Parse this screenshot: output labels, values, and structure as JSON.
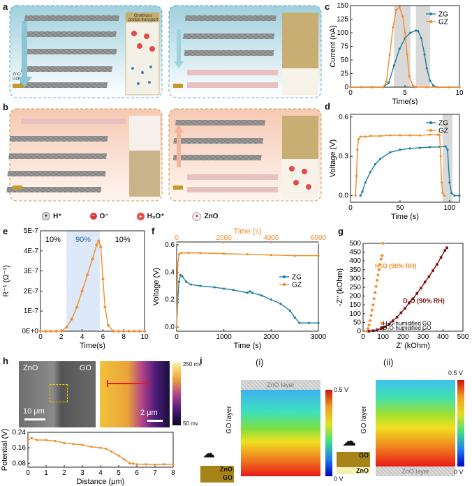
{
  "panel_labels": {
    "a": "a",
    "b": "b",
    "c": "c",
    "d": "d",
    "e": "e",
    "f": "f",
    "g": "g",
    "h": "h",
    "i": "i"
  },
  "schematic": {
    "grotthuss_label": "Grotthuss proton transport",
    "zno_tag": "ZnO",
    "go_tag": "GO",
    "legend": [
      {
        "symbol": "+",
        "label": "H⁺"
      },
      {
        "symbol": "−",
        "label": "O⁻"
      },
      {
        "symbol": "+",
        "label": "H₃O⁺"
      },
      {
        "symbol": "•",
        "label": "ZnO"
      }
    ]
  },
  "colors": {
    "zg": "#1b7f9e",
    "gz": "#f28c28",
    "d2o": "#7a1010",
    "h2o": "#f28c28",
    "highlight": "#dde8f8",
    "gray_band": "#d9d9d9"
  },
  "chart_data": [
    {
      "id": "c",
      "type": "line",
      "xlabel": "Time(s)",
      "ylabel": "Current (nA)",
      "xlim": [
        0,
        10
      ],
      "ylim": [
        0,
        150
      ],
      "xticks": [
        0,
        5,
        10
      ],
      "yticks": [
        0,
        25,
        50,
        75,
        100,
        125,
        150
      ],
      "bands": [
        [
          4,
          5.5
        ],
        [
          6,
          7.3
        ]
      ],
      "series": [
        {
          "name": "ZG",
          "x": [
            0,
            1,
            2,
            3,
            3.5,
            4,
            4.5,
            5,
            5.5,
            6,
            6.2,
            6.5,
            6.8,
            7,
            7.3,
            7.6,
            8,
            9,
            10
          ],
          "values": [
            0,
            0,
            0,
            0,
            8,
            40,
            70,
            90,
            100,
            104,
            103,
            90,
            60,
            35,
            12,
            3,
            0,
            0,
            0
          ]
        },
        {
          "name": "GZ",
          "x": [
            0,
            1,
            2,
            3,
            3.3,
            3.6,
            3.9,
            4.2,
            4.5,
            4.8,
            5,
            5.2,
            5.4,
            5.7,
            6,
            7,
            8,
            9,
            10
          ],
          "values": [
            0,
            0,
            0,
            0,
            10,
            60,
            110,
            142,
            147,
            130,
            100,
            60,
            20,
            4,
            0,
            0,
            0,
            0,
            0
          ]
        }
      ]
    },
    {
      "id": "d",
      "type": "line",
      "xlabel": "Time (s)",
      "ylabel": "Voltage (V)",
      "xlim": [
        0,
        110
      ],
      "ylim": [
        -0.05,
        0.62
      ],
      "xticks": [
        0,
        50,
        100
      ],
      "yticks": [
        0.0,
        0.3,
        0.6
      ],
      "bands": [
        [
          93,
          103
        ]
      ],
      "series": [
        {
          "name": "ZG",
          "x": [
            10,
            12,
            15,
            20,
            25,
            30,
            40,
            50,
            60,
            70,
            80,
            90,
            96,
            98,
            100,
            102,
            105,
            110
          ],
          "values": [
            0,
            0.03,
            0.1,
            0.18,
            0.24,
            0.28,
            0.33,
            0.35,
            0.36,
            0.365,
            0.37,
            0.372,
            0.375,
            0.35,
            0.1,
            0.02,
            0,
            0
          ]
        },
        {
          "name": "GZ",
          "x": [
            5,
            6,
            7,
            8,
            10,
            15,
            20,
            30,
            40,
            50,
            60,
            70,
            80,
            88,
            90,
            91,
            92,
            93,
            95
          ],
          "values": [
            0,
            0.15,
            0.35,
            0.43,
            0.45,
            0.45,
            0.455,
            0.455,
            0.46,
            0.46,
            0.46,
            0.46,
            0.465,
            0.465,
            0.465,
            0.3,
            0.1,
            0.02,
            0
          ]
        }
      ]
    },
    {
      "id": "e",
      "type": "line",
      "xlabel": "Time(s)",
      "ylabel": "R⁻¹ (Ω⁻¹)",
      "xlim": [
        0,
        10
      ],
      "ylim": [
        0,
        5e-07
      ],
      "xticks": [
        0,
        2,
        4,
        6,
        8,
        10
      ],
      "ytick_labels": [
        "0E+0",
        "1E-7",
        "2E-7",
        "3E-7",
        "4E-7",
        "5E-7"
      ],
      "yticks": [
        0,
        1e-07,
        2e-07,
        3e-07,
        4e-07,
        5e-07
      ],
      "region_labels": [
        "10%",
        "90%",
        "10%"
      ],
      "highlight": [
        2.5,
        5.7
      ],
      "series": [
        {
          "name": "R",
          "x": [
            0,
            0.5,
            1,
            1.5,
            2,
            2.5,
            3,
            3.5,
            4,
            4.5,
            5,
            5.4,
            5.6,
            5.8,
            6,
            6.2,
            6.5,
            7,
            7.5,
            8,
            8.5,
            9,
            9.5,
            10
          ],
          "values": [
            0,
            0,
            0,
            0,
            0,
            2e-08,
            6e-08,
            1.2e-07,
            2e-07,
            2.8e-07,
            3.6e-07,
            4.3e-07,
            4.5e-07,
            4.2e-07,
            2.6e-07,
            1.2e-07,
            3e-08,
            0,
            0,
            0,
            0,
            0,
            0,
            0
          ]
        }
      ]
    },
    {
      "id": "f",
      "type": "line",
      "xlabel": "Time (s)",
      "x2label": "Time (s)",
      "ylabel": "Voltage (V)",
      "xlim": [
        0,
        3000
      ],
      "x2lim": [
        0,
        6000
      ],
      "ylim": [
        -0.03,
        0.62
      ],
      "xticks": [
        0,
        1000,
        2000,
        3000
      ],
      "x2ticks": [
        0,
        2000,
        4000,
        6000
      ],
      "yticks": [
        0.0,
        0.2,
        0.4,
        0.6
      ],
      "series": [
        {
          "name": "ZG",
          "x": [
            0,
            20,
            50,
            80,
            120,
            200,
            300,
            500,
            800,
            1000,
            1200,
            1500,
            1550,
            1600,
            1800,
            2000,
            2200,
            2400,
            2500,
            2600,
            2800,
            3000
          ],
          "values": [
            0,
            0.18,
            0.33,
            0.38,
            0.37,
            0.33,
            0.31,
            0.3,
            0.29,
            0.28,
            0.27,
            0.25,
            0.26,
            0.25,
            0.23,
            0.2,
            0.17,
            0.12,
            0.07,
            0.03,
            0.03,
            0.03
          ]
        },
        {
          "name": "GZ",
          "x2": [
            0,
            40,
            100,
            200,
            500,
            1000,
            2000,
            3000,
            4000,
            5000,
            6000
          ],
          "values": [
            0,
            0.45,
            0.53,
            0.54,
            0.54,
            0.54,
            0.535,
            0.53,
            0.525,
            0.52,
            0.52
          ]
        }
      ]
    },
    {
      "id": "g",
      "type": "scatter",
      "xlabel": "Z' (kOhm)",
      "ylabel": "-Z'' (kOhm)",
      "xlim": [
        0,
        500
      ],
      "ylim": [
        0,
        500
      ],
      "xticks": [
        0,
        100,
        200,
        300,
        400,
        500
      ],
      "yticks": [
        0,
        50,
        100,
        150,
        200,
        250,
        300,
        350,
        400,
        450,
        500
      ],
      "annotations": [
        "H₂O (90% RH)",
        "D₂O (90% RH)"
      ],
      "series": [
        {
          "name": "H₂O-humidified GO",
          "x": [
            20,
            25,
            30,
            35,
            40,
            45,
            50,
            55,
            60,
            65,
            70,
            75,
            80,
            85,
            90,
            95,
            100
          ],
          "values": [
            0,
            15,
            35,
            60,
            90,
            120,
            150,
            185,
            220,
            255,
            290,
            320,
            350,
            380,
            410,
            430,
            500
          ]
        },
        {
          "name": "D₂O-humidified GO",
          "x": [
            30,
            50,
            70,
            90,
            110,
            130,
            150,
            170,
            190,
            210,
            230,
            250,
            270,
            290,
            310,
            330,
            350,
            370,
            390,
            410,
            420
          ],
          "values": [
            0,
            3,
            8,
            15,
            25,
            40,
            60,
            80,
            105,
            130,
            160,
            185,
            215,
            245,
            280,
            310,
            345,
            380,
            420,
            460,
            475
          ]
        }
      ]
    }
  ],
  "panel_h": {
    "zno": "ZnO",
    "go": "GO",
    "scale1": "10 μm",
    "scale2": "2 μm",
    "cbar_top": "250 mv",
    "cbar_bottom": "50 mv",
    "chart_data": {
      "type": "line",
      "xlabel": "Distance (μm)",
      "ylabel": "Potential (V)",
      "xlim": [
        0,
        8
      ],
      "ylim": [
        0.06,
        0.24
      ],
      "xticks": [
        0,
        1,
        2,
        3,
        4,
        5,
        6,
        7,
        8
      ],
      "yticks": [
        0.08,
        0.16,
        0.24
      ],
      "x": [
        0,
        0.2,
        0.5,
        1,
        1.5,
        2,
        2.5,
        3,
        3.5,
        4,
        4.3,
        4.6,
        5,
        5.3,
        5.6,
        5.8,
        6,
        6.5,
        7,
        7.5,
        8
      ],
      "values": [
        0.2,
        0.21,
        0.2,
        0.2,
        0.195,
        0.185,
        0.18,
        0.175,
        0.165,
        0.16,
        0.155,
        0.14,
        0.12,
        0.1,
        0.08,
        0.078,
        0.075,
        0.075,
        0.073,
        0.075,
        0.074
      ]
    }
  },
  "panel_i": {
    "sub1": "(i)",
    "sub2": "(ii)",
    "zno_layer": "ZnO layer",
    "go_layer": "GO layer",
    "cbar_top": "0.5 V",
    "cbar_bottom": "0 V",
    "zno": "ZnO",
    "go": "GO"
  }
}
